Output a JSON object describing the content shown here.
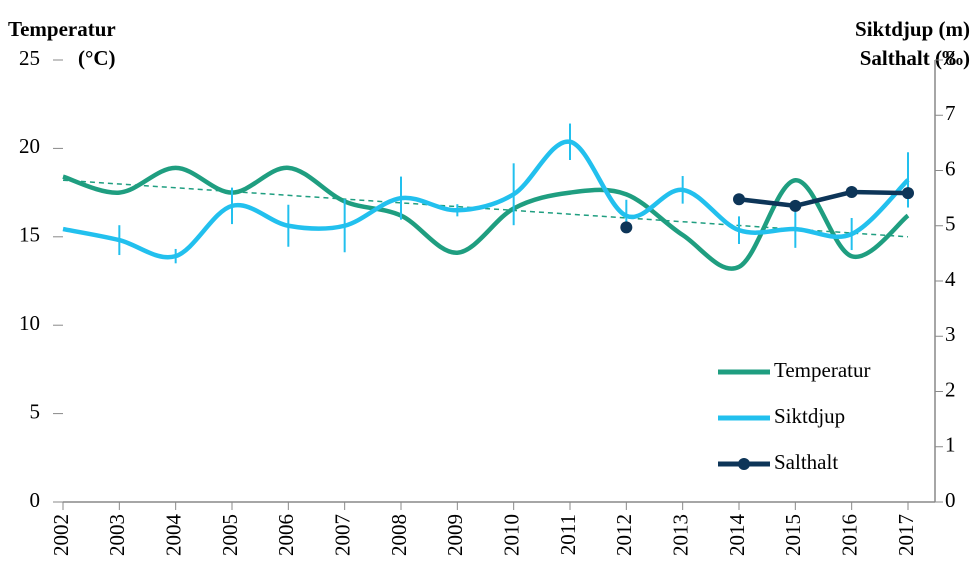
{
  "chart_data": {
    "type": "line",
    "title_left": [
      "Temperatur",
      "(°C)"
    ],
    "title_right": [
      "Siktdjup (m)",
      "Salthalt (‰)"
    ],
    "x": [
      "2002",
      "2003",
      "2004",
      "2005",
      "2006",
      "2007",
      "2008",
      "2009",
      "2010",
      "2011",
      "2012",
      "2013",
      "2014",
      "2015",
      "2016",
      "2017"
    ],
    "ylim": [
      0,
      25
    ],
    "yticks": [
      0,
      5,
      10,
      15,
      20,
      25
    ],
    "y2lim": [
      0,
      8
    ],
    "y2ticks": [
      0,
      1,
      2,
      3,
      4,
      5,
      6,
      7,
      8
    ],
    "legend": "bottom-right",
    "series": [
      {
        "name": "Temperatur",
        "color": "#1f9e80",
        "axis": "y",
        "smooth": true,
        "values": [
          18.4,
          17.5,
          18.9,
          17.5,
          18.9,
          17.0,
          16.2,
          14.1,
          16.6,
          17.5,
          17.4,
          15.1,
          13.3,
          18.2,
          13.9,
          16.2
        ],
        "trend": [
          18.2,
          15.0
        ],
        "trend_style": "dashed"
      },
      {
        "name": "Siktdjup",
        "color": "#22c0ee",
        "axis": "y2",
        "smooth": true,
        "values": [
          4.94,
          4.74,
          4.45,
          5.36,
          5.0,
          5.0,
          5.5,
          5.28,
          5.57,
          6.52,
          5.18,
          5.65,
          4.92,
          4.94,
          4.85,
          5.83
        ],
        "errors": [
          null,
          0.27,
          0.13,
          0.33,
          0.38,
          0.48,
          0.39,
          0.11,
          0.56,
          0.33,
          0.29,
          0.25,
          0.25,
          0.34,
          0.29,
          0.5
        ]
      },
      {
        "name": "Salthalt",
        "color": "#0d3558",
        "axis": "y2",
        "markers": true,
        "values": [
          null,
          null,
          null,
          null,
          null,
          null,
          null,
          null,
          null,
          null,
          4.97,
          null,
          5.48,
          5.36,
          5.61,
          5.59
        ]
      }
    ]
  }
}
